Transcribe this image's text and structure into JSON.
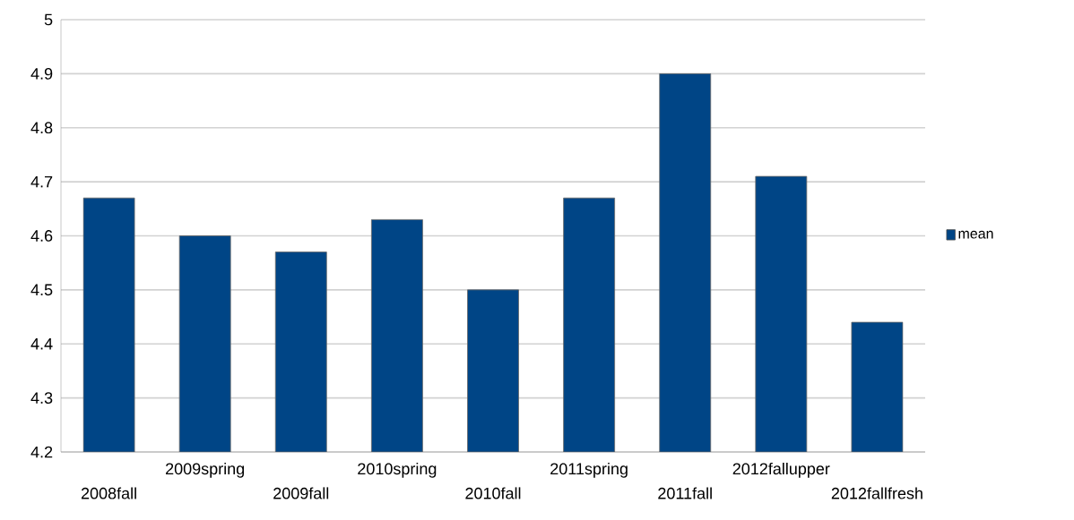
{
  "chart_data": {
    "type": "bar",
    "categories": [
      "2008fall",
      "2009spring",
      "2009fall",
      "2010spring",
      "2010fall",
      "2011spring",
      "2011fall",
      "2012fallupper",
      "2012fallfresh"
    ],
    "series": [
      {
        "name": "mean",
        "color": "#004586",
        "values": [
          4.67,
          4.6,
          4.57,
          4.63,
          4.5,
          4.67,
          4.9,
          4.71,
          4.44
        ]
      }
    ],
    "ylim": [
      4.2,
      5
    ],
    "yticks": [
      4.2,
      4.3,
      4.4,
      4.5,
      4.6,
      4.7,
      4.8,
      4.9,
      5
    ],
    "grid": "y",
    "legend": "right"
  }
}
